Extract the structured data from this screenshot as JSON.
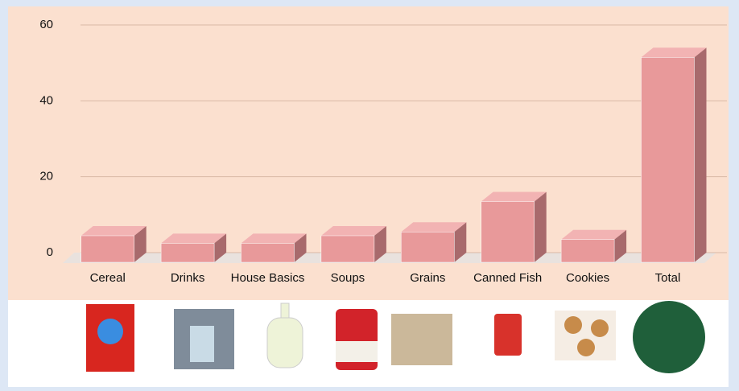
{
  "chart_data": {
    "type": "bar3d",
    "categories": [
      "Cereal",
      "Drinks",
      "House Basics",
      "Soups",
      "Grains",
      "Canned Fish",
      "Cookies",
      "Total"
    ],
    "values": [
      7,
      5,
      5,
      7,
      8,
      16,
      6,
      54
    ],
    "color": "#e8999a",
    "ylim": [
      0,
      60
    ],
    "yticks": [
      0,
      20,
      40,
      60
    ],
    "grid": true
  }
}
